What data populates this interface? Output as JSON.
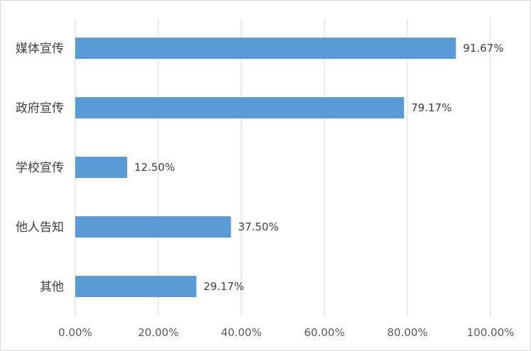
{
  "chart_data": {
    "type": "bar",
    "orientation": "horizontal",
    "categories": [
      "媒体宣传",
      "政府宣传",
      "学校宣传",
      "他人告知",
      "其他"
    ],
    "values": [
      91.67,
      79.17,
      12.5,
      37.5,
      29.17
    ],
    "value_labels": [
      "91.67%",
      "79.17%",
      "12.50%",
      "37.50%",
      "29.17%"
    ],
    "x_ticks": [
      "0.00%",
      "20.00%",
      "40.00%",
      "60.00%",
      "80.00%",
      "100.00%"
    ],
    "xlim": [
      0,
      100
    ],
    "grid": true,
    "legend": "none",
    "title": "",
    "xlabel": "",
    "ylabel": "",
    "bar_color": "#5b9bd5",
    "grid_color": "#d9d9d9"
  }
}
